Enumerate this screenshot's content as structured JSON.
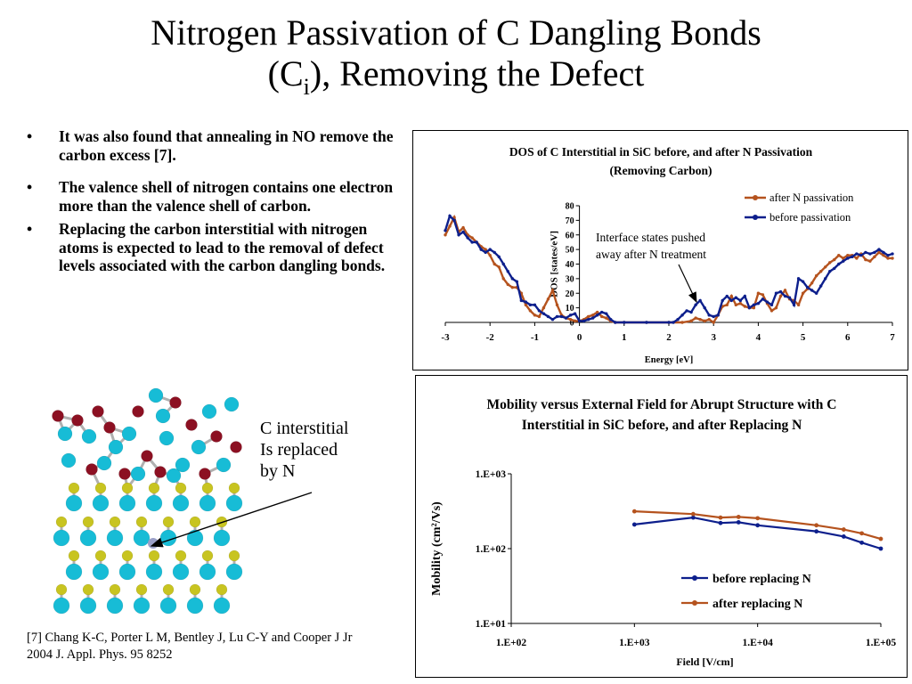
{
  "slide": {
    "title_line1": "Nitrogen Passivation of C Dangling Bonds",
    "title_line2_pre": "(C",
    "title_line2_sub": "i",
    "title_line2_post": "), Removing the Defect",
    "bullets": [
      "It was also found that annealing in NO remove the carbon excess [7].",
      "The valence shell of nitrogen contains one electron more than the valence shell of carbon.",
      "Replacing the carbon interstitial with nitrogen atoms is expected to lead to the removal of defect levels associated with the carbon dangling bonds."
    ],
    "bullet_symbol": "•",
    "molecule_label": [
      "C interstitial",
      "Is replaced",
      "by N"
    ],
    "reference": [
      "[7] Chang K-C, Porter L M, Bentley J, Lu C-Y and Cooper J Jr",
      "2004 J. Appl. Phys. 95 8252"
    ],
    "colors": {
      "carbon": "#17bcd6",
      "silicon": "#c8c420",
      "oxygen": "#8c1022",
      "nitrogen": "#9aa0c8",
      "bond": "#b0b0b0"
    }
  },
  "chart_data": [
    {
      "type": "line",
      "title": [
        "DOS of C Interstitial in SiC before, and after N Passivation",
        "(Removing Carbon)"
      ],
      "xlabel": "Energy [eV]",
      "ylabel": "DOS [states/eV]",
      "xlim": [
        -3,
        7
      ],
      "ylim": [
        0,
        80
      ],
      "xticks": [
        "-3",
        "-2",
        "-1",
        "0",
        "1",
        "2",
        "3",
        "4",
        "5",
        "6",
        "7"
      ],
      "yticks": [
        "0",
        "10",
        "20",
        "30",
        "40",
        "50",
        "60",
        "70",
        "80"
      ],
      "legend": "top-right",
      "annotation": [
        "Interface states pushed",
        "away after N treatment"
      ],
      "series": [
        {
          "name": "after N passivation",
          "color": "#b5531e",
          "x": [
            -3.0,
            -2.9,
            -2.8,
            -2.7,
            -2.6,
            -2.5,
            -2.4,
            -2.3,
            -2.2,
            -2.1,
            -2.0,
            -1.9,
            -1.8,
            -1.7,
            -1.6,
            -1.5,
            -1.4,
            -1.3,
            -1.2,
            -1.1,
            -1.0,
            -0.9,
            -0.8,
            -0.7,
            -0.6,
            -0.5,
            -0.4,
            -0.3,
            -0.2,
            -0.1,
            0.0,
            0.1,
            0.2,
            0.3,
            0.4,
            0.5,
            0.6,
            0.7,
            0.8,
            1.0,
            1.5,
            2.0,
            2.3,
            2.5,
            2.6,
            2.7,
            2.8,
            2.9,
            3.0,
            3.1,
            3.2,
            3.3,
            3.4,
            3.5,
            3.6,
            3.7,
            3.8,
            3.9,
            4.0,
            4.1,
            4.2,
            4.3,
            4.4,
            4.5,
            4.6,
            4.7,
            4.8,
            4.9,
            5.0,
            5.1,
            5.2,
            5.3,
            5.4,
            5.5,
            5.6,
            5.7,
            5.8,
            5.9,
            6.0,
            6.1,
            6.2,
            6.3,
            6.4,
            6.5,
            6.6,
            6.7,
            6.8,
            6.9,
            7.0
          ],
          "values": [
            60,
            66,
            72,
            62,
            65,
            60,
            58,
            55,
            52,
            50,
            46,
            40,
            38,
            30,
            26,
            24,
            24,
            20,
            12,
            8,
            5,
            4,
            10,
            16,
            22,
            12,
            5,
            3,
            2,
            1,
            1,
            2,
            4,
            5,
            7,
            4,
            3,
            1,
            0,
            0,
            0,
            0,
            0,
            1,
            3,
            2,
            1,
            2,
            0,
            5,
            11,
            12,
            18,
            12,
            13,
            11,
            10,
            10,
            20,
            19,
            13,
            8,
            10,
            18,
            22,
            16,
            15,
            12,
            20,
            23,
            27,
            32,
            35,
            38,
            41,
            43,
            46,
            44,
            46,
            46,
            44,
            47,
            43,
            42,
            45,
            48,
            46,
            44,
            44
          ]
        },
        {
          "name": "before passivation",
          "color": "#0d1f8c",
          "x": [
            -3.0,
            -2.9,
            -2.8,
            -2.7,
            -2.6,
            -2.5,
            -2.4,
            -2.3,
            -2.2,
            -2.1,
            -2.0,
            -1.9,
            -1.8,
            -1.7,
            -1.6,
            -1.5,
            -1.4,
            -1.3,
            -1.2,
            -1.1,
            -1.0,
            -0.9,
            -0.8,
            -0.7,
            -0.6,
            -0.5,
            -0.4,
            -0.3,
            -0.2,
            -0.1,
            0.0,
            0.1,
            0.2,
            0.3,
            0.4,
            0.5,
            0.6,
            0.7,
            0.8,
            1.0,
            1.5,
            2.0,
            2.1,
            2.2,
            2.3,
            2.4,
            2.5,
            2.6,
            2.7,
            2.8,
            2.9,
            3.0,
            3.1,
            3.2,
            3.3,
            3.4,
            3.5,
            3.6,
            3.7,
            3.8,
            3.9,
            4.0,
            4.1,
            4.2,
            4.3,
            4.4,
            4.5,
            4.6,
            4.7,
            4.8,
            4.9,
            5.0,
            5.1,
            5.2,
            5.3,
            5.4,
            5.5,
            5.6,
            5.7,
            5.8,
            5.9,
            6.0,
            6.1,
            6.2,
            6.3,
            6.4,
            6.5,
            6.6,
            6.7,
            6.8,
            6.9,
            7.0
          ],
          "values": [
            63,
            73,
            70,
            60,
            62,
            58,
            55,
            55,
            50,
            48,
            50,
            48,
            45,
            40,
            35,
            30,
            28,
            15,
            14,
            12,
            12,
            8,
            6,
            4,
            2,
            4,
            4,
            3,
            5,
            6,
            1,
            1,
            2,
            3,
            5,
            7,
            6,
            2,
            0,
            0,
            0,
            0,
            0,
            2,
            5,
            8,
            7,
            12,
            15,
            10,
            5,
            4,
            5,
            15,
            18,
            15,
            17,
            15,
            18,
            10,
            12,
            13,
            16,
            14,
            12,
            20,
            21,
            18,
            17,
            12,
            30,
            28,
            24,
            22,
            20,
            25,
            30,
            35,
            37,
            40,
            42,
            44,
            45,
            47,
            46,
            48,
            47,
            48,
            50,
            48,
            46,
            47
          ]
        }
      ]
    },
    {
      "type": "line",
      "title": [
        "Mobility versus External Field for Abrupt Structure with C",
        "Interstitial in SiC before, and after Replacing N"
      ],
      "xlabel": "Field [V/cm]",
      "ylabel": "Mobility (cm²/Vs)",
      "xscale": "log",
      "yscale": "log",
      "xlim": [
        100,
        100000
      ],
      "ylim": [
        10,
        1000
      ],
      "xticks": [
        "1.E+02",
        "1.E+03",
        "1.E+04",
        "1.E+05"
      ],
      "yticks": [
        "1.E+01",
        "1.E+02",
        "1.E+03"
      ],
      "legend": "bottom-right",
      "series": [
        {
          "name": "before replacing N",
          "color": "#0d1f8c",
          "x": [
            1000,
            3000,
            5000,
            7000,
            10000,
            30000,
            50000,
            70000,
            100000
          ],
          "values": [
            210,
            260,
            220,
            225,
            205,
            170,
            145,
            120,
            100
          ]
        },
        {
          "name": "after replacing N",
          "color": "#b5531e",
          "x": [
            1000,
            3000,
            5000,
            7000,
            10000,
            30000,
            50000,
            70000,
            100000
          ],
          "values": [
            315,
            290,
            260,
            265,
            255,
            205,
            180,
            160,
            135
          ]
        }
      ]
    }
  ]
}
